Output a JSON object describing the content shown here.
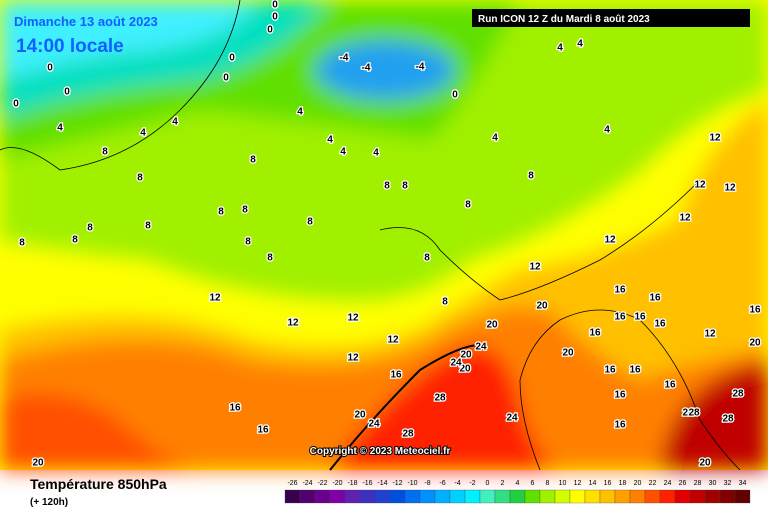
{
  "header": {
    "date": "Dimanche 13 août 2023",
    "time": "14:00 locale",
    "run": "Run ICON 12 Z du Mardi 8 août 2023"
  },
  "copyright": "Copyright © 2023 Meteociel.fr",
  "footer": {
    "title": "Température 850hPa",
    "subtitle": "(+ 120h)"
  },
  "legend": {
    "values": [
      -26,
      -24,
      -22,
      -20,
      -18,
      -16,
      -14,
      -12,
      -10,
      -8,
      -6,
      -4,
      -2,
      0,
      2,
      4,
      6,
      8,
      10,
      12,
      14,
      16,
      18,
      20,
      22,
      24,
      26,
      28,
      30,
      32,
      34
    ],
    "colors": [
      "#3a0050",
      "#52006e",
      "#6a0090",
      "#8000a8",
      "#6020b0",
      "#4030c0",
      "#2040d0",
      "#0050e0",
      "#0070f0",
      "#0090ff",
      "#00b0ff",
      "#00d0ff",
      "#00f0ff",
      "#40f0c0",
      "#30e080",
      "#20d040",
      "#60e000",
      "#a0f000",
      "#d0ff00",
      "#ffff00",
      "#ffe000",
      "#ffc000",
      "#ffa000",
      "#ff8000",
      "#ff5000",
      "#ff2000",
      "#e00000",
      "#c00000",
      "#a00000",
      "#800000",
      "#600000"
    ]
  },
  "contour_labels": [
    "0",
    "0",
    "0",
    "0",
    "0",
    "0",
    "0",
    "0",
    "0",
    "-4",
    "-4",
    "-4",
    "4",
    "4",
    "4",
    "4",
    "4",
    "4",
    "4",
    "4",
    "4",
    "4",
    "4",
    "8",
    "8",
    "8",
    "8",
    "8",
    "8",
    "8",
    "8",
    "8",
    "8",
    "8",
    "8",
    "8",
    "8",
    "8",
    "8",
    "8",
    "8",
    "12",
    "12",
    "12",
    "12",
    "12",
    "12",
    "12",
    "12",
    "12",
    "12",
    "12",
    "12",
    "16",
    "16",
    "16",
    "16",
    "16",
    "16",
    "16",
    "16",
    "16",
    "16",
    "16",
    "16",
    "16",
    "16",
    "16",
    "20",
    "20",
    "20",
    "20",
    "20",
    "20",
    "20",
    "20",
    "20",
    "24",
    "24",
    "24",
    "24",
    "24",
    "28",
    "28",
    "28",
    "28",
    "28"
  ]
}
